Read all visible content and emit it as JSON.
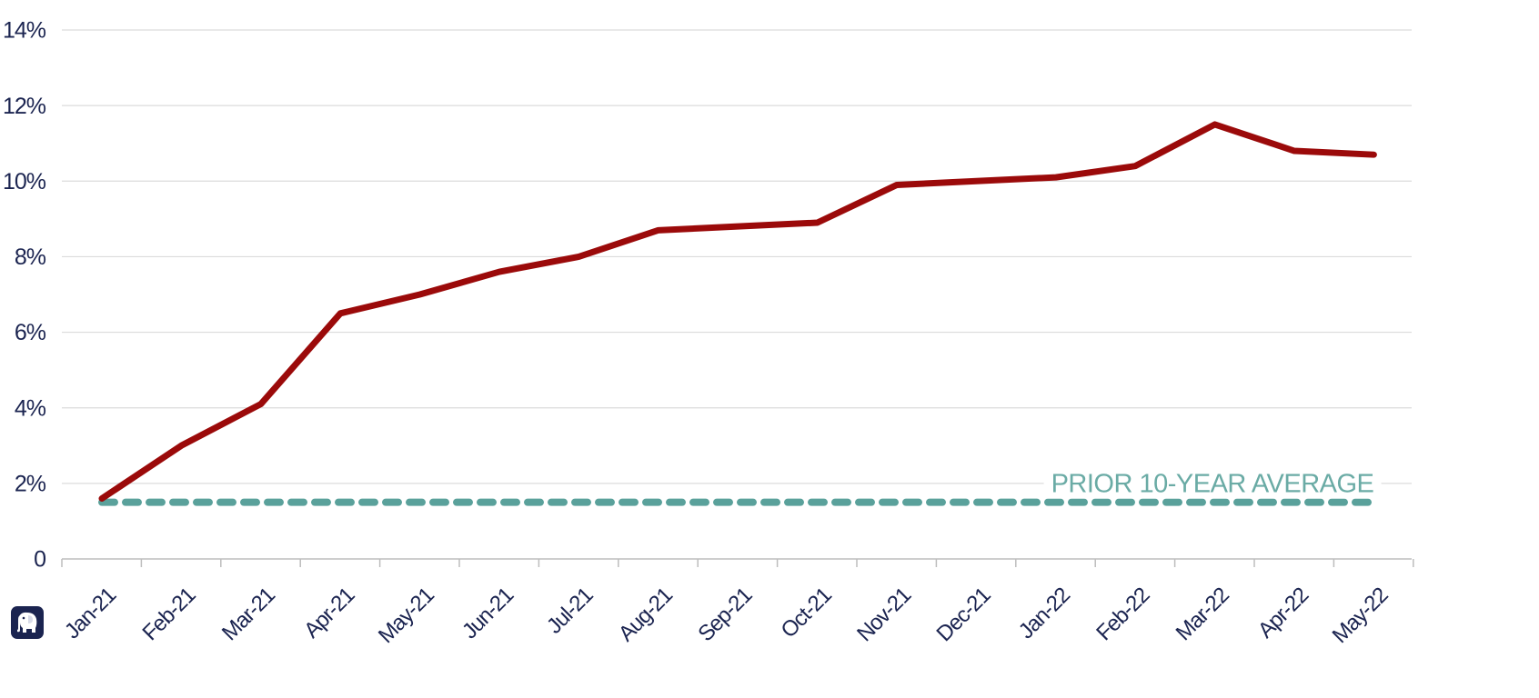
{
  "chart_data": {
    "type": "line",
    "categories": [
      "Jan-21",
      "Feb-21",
      "Mar-21",
      "Apr-21",
      "May-21",
      "Jun-21",
      "Jul-21",
      "Aug-21",
      "Sep-21",
      "Oct-21",
      "Nov-21",
      "Dec-21",
      "Jan-22",
      "Feb-22",
      "Mar-22",
      "Apr-22",
      "May-22"
    ],
    "series": [
      {
        "values": [
          1.6,
          3.0,
          4.1,
          6.5,
          7.0,
          7.6,
          8.0,
          8.7,
          8.8,
          8.9,
          9.9,
          10.0,
          10.1,
          10.4,
          11.5,
          10.8,
          10.7
        ],
        "color": "#9b0a0a",
        "style": "solid"
      },
      {
        "values": [
          1.5,
          1.5,
          1.5,
          1.5,
          1.5,
          1.5,
          1.5,
          1.5,
          1.5,
          1.5,
          1.5,
          1.5,
          1.5,
          1.5,
          1.5,
          1.5,
          1.5
        ],
        "color": "#5aa19b",
        "style": "dashed"
      }
    ],
    "annotation": {
      "text": "PRIOR 10-YEAR AVERAGE",
      "color": "#6aaba5"
    },
    "y_ticks": [
      0,
      2,
      4,
      6,
      8,
      10,
      12,
      14
    ],
    "y_tick_labels": [
      "0",
      "2%",
      "4%",
      "6%",
      "8%",
      "10%",
      "12%",
      "14%"
    ],
    "ylim": [
      0,
      14
    ],
    "grid": "horizontal",
    "legend": "none",
    "title": "",
    "xlabel": "",
    "ylabel": ""
  },
  "logo": {
    "icon": "elephant-icon",
    "color": "#1b2450"
  }
}
